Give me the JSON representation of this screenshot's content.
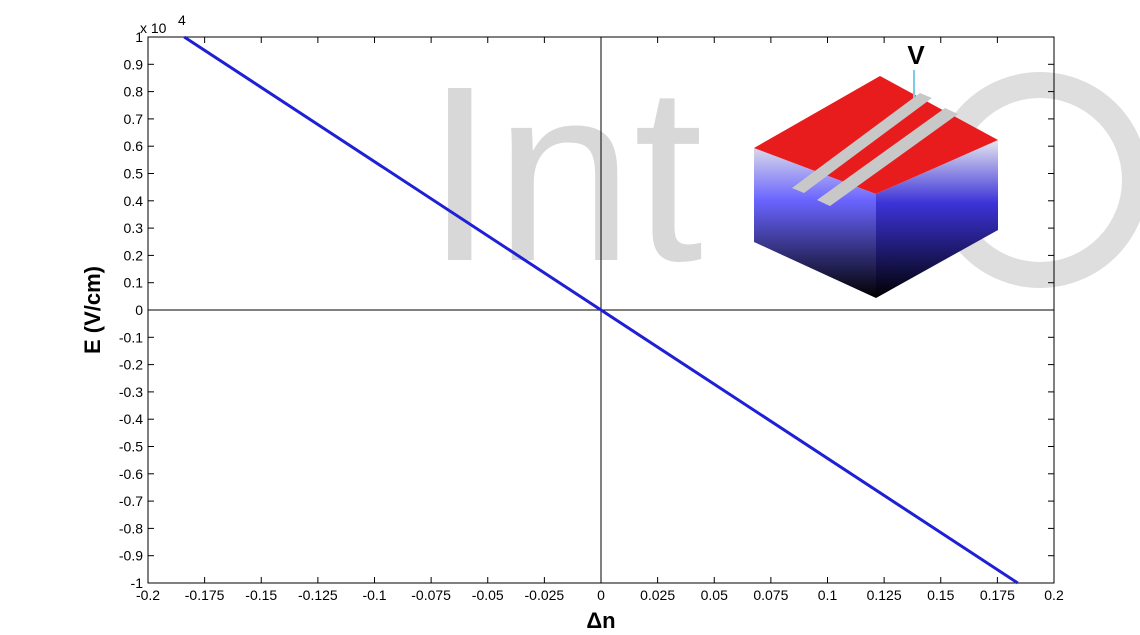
{
  "chart_data": {
    "type": "line",
    "title": "",
    "xlabel": "Δn",
    "ylabel": "E (V/cm)",
    "y_multiplier_label": "x 10",
    "y_multiplier_exponent": "4",
    "xlim": [
      -0.2,
      0.2
    ],
    "ylim": [
      -1,
      1
    ],
    "grid": false,
    "zero_lines": true,
    "x_ticks": [
      "-0.2",
      "-0.175",
      "-0.15",
      "-0.125",
      "-0.1",
      "-0.075",
      "-0.05",
      "-0.025",
      "0",
      "0.025",
      "0.05",
      "0.075",
      "0.1",
      "0.125",
      "0.15",
      "0.175",
      "0.2"
    ],
    "y_ticks": [
      "1",
      "0.9",
      "0.8",
      "0.7",
      "0.6",
      "0.5",
      "0.4",
      "0.3",
      "0.2",
      "0.1",
      "0",
      "-0.1",
      "-0.2",
      "-0.3",
      "-0.4",
      "-0.5",
      "-0.6",
      "-0.7",
      "-0.8",
      "-0.9",
      "-1"
    ],
    "series": [
      {
        "color": "#1f1fd6",
        "x": [
          -0.184,
          0,
          0.184
        ],
        "y": [
          1,
          0,
          -1
        ]
      }
    ],
    "inset": {
      "label": "V",
      "top_color": "#e81c1c",
      "stripe_color": "#c8c8c8",
      "side_color": "#4a3df0"
    }
  },
  "watermark_text": "Int"
}
